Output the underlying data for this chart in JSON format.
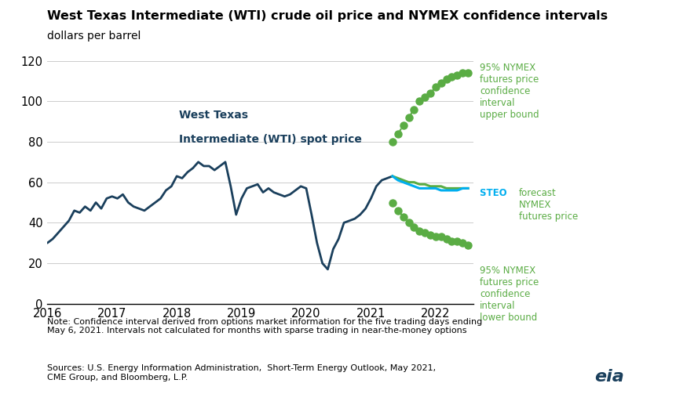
{
  "title": "West Texas Intermediate (WTI) crude oil price and NYMEX confidence intervals",
  "subtitle": "dollars per barrel",
  "note": "Note: Confidence interval derived from options market information for the five trading days ending\nMay 6, 2021. Intervals not calculated for months with sparse trading in near-the-money options",
  "sources": "Sources: U.S. Energy Information Administration,  Short-Term Energy Outlook, May 2021,\nCME Group, and Bloomberg, L.P.",
  "wti_color": "#1a3f5c",
  "steo_color": "#00aeef",
  "nymex_color": "#5aac44",
  "ylim": [
    0,
    120
  ],
  "yticks": [
    0,
    20,
    40,
    60,
    80,
    100,
    120
  ],
  "wti_label_line1": "West Texas",
  "wti_label_line2": "Intermediate (WTI) spot price",
  "upper_label": "95% NYMEX\nfutures price\nconfidence\ninterval\nupper bound",
  "steo_label": "forecast\nNYMEX\nfutures price",
  "steo_label_prefix": "STEO ",
  "lower_label": "95% NYMEX\nfutures price\nconfidence\ninterval\nlower bound",
  "wti_x": [
    2016.0,
    2016.083,
    2016.167,
    2016.25,
    2016.333,
    2016.417,
    2016.5,
    2016.583,
    2016.667,
    2016.75,
    2016.833,
    2016.917,
    2017.0,
    2017.083,
    2017.167,
    2017.25,
    2017.333,
    2017.417,
    2017.5,
    2017.583,
    2017.667,
    2017.75,
    2017.833,
    2017.917,
    2018.0,
    2018.083,
    2018.167,
    2018.25,
    2018.333,
    2018.417,
    2018.5,
    2018.583,
    2018.667,
    2018.75,
    2018.833,
    2018.917,
    2019.0,
    2019.083,
    2019.167,
    2019.25,
    2019.333,
    2019.417,
    2019.5,
    2019.583,
    2019.667,
    2019.75,
    2019.833,
    2019.917,
    2020.0,
    2020.083,
    2020.167,
    2020.25,
    2020.333,
    2020.417,
    2020.5,
    2020.583,
    2020.667,
    2020.75,
    2020.833,
    2020.917,
    2021.0,
    2021.083,
    2021.167,
    2021.25,
    2021.333
  ],
  "wti_y": [
    30,
    32,
    35,
    38,
    41,
    46,
    45,
    48,
    46,
    50,
    47,
    52,
    53,
    52,
    54,
    50,
    48,
    47,
    46,
    48,
    50,
    52,
    56,
    58,
    63,
    62,
    65,
    67,
    70,
    68,
    68,
    66,
    68,
    70,
    58,
    44,
    52,
    57,
    58,
    59,
    55,
    57,
    55,
    54,
    53,
    54,
    56,
    58,
    57,
    44,
    30,
    20,
    17,
    27,
    32,
    40,
    41,
    42,
    44,
    47,
    52,
    58,
    61,
    62,
    63
  ],
  "steo_x": [
    2021.333,
    2021.417,
    2021.5,
    2021.583,
    2021.667,
    2021.75,
    2021.833,
    2021.917,
    2022.0,
    2022.083,
    2022.167,
    2022.25,
    2022.333,
    2022.417,
    2022.5
  ],
  "steo_y": [
    63,
    61,
    60,
    59,
    58,
    57,
    57,
    57,
    57,
    56,
    56,
    56,
    56,
    57,
    57
  ],
  "nymex_mid_x": [
    2021.333,
    2021.417,
    2021.5,
    2021.583,
    2021.667,
    2021.75,
    2021.833,
    2021.917,
    2022.0,
    2022.083,
    2022.167,
    2022.25,
    2022.333,
    2022.417,
    2022.5
  ],
  "nymex_mid_y": [
    63,
    62,
    61,
    60,
    60,
    59,
    59,
    58,
    58,
    58,
    57,
    57,
    57,
    57,
    57
  ],
  "upper_x": [
    2021.333,
    2021.417,
    2021.5,
    2021.583,
    2021.667,
    2021.75,
    2021.833,
    2021.917,
    2022.0,
    2022.083,
    2022.167,
    2022.25,
    2022.333,
    2022.417,
    2022.5
  ],
  "upper_y": [
    80,
    84,
    88,
    92,
    96,
    100,
    102,
    104,
    107,
    109,
    111,
    112,
    113,
    114,
    114
  ],
  "lower_x": [
    2021.333,
    2021.417,
    2021.5,
    2021.583,
    2021.667,
    2021.75,
    2021.833,
    2021.917,
    2022.0,
    2022.083,
    2022.167,
    2022.25,
    2022.333,
    2022.417,
    2022.5
  ],
  "lower_y": [
    50,
    46,
    43,
    40,
    38,
    36,
    35,
    34,
    33,
    33,
    32,
    31,
    31,
    30,
    29
  ],
  "xlim": [
    2016.0,
    2022.58
  ],
  "xtick_positions": [
    2016,
    2017,
    2018,
    2019,
    2020,
    2021,
    2022
  ],
  "xtick_labels": [
    "2016",
    "2017",
    "2018",
    "2019",
    "2020",
    "2021",
    "2022"
  ]
}
